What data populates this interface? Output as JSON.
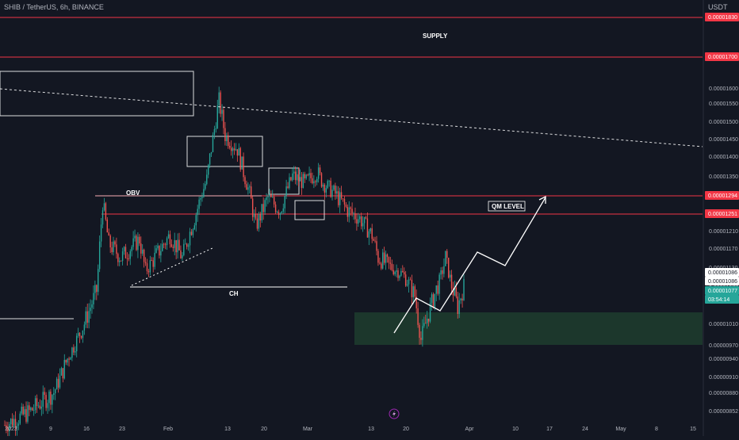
{
  "header": {
    "symbol_line": "SHIB / TetherUS, 6h, BINANCE",
    "currency": "USDT"
  },
  "colors": {
    "background": "#131722",
    "up": "#26a69a",
    "down": "#ef5350",
    "resistance_line": "#f23645",
    "demand_zone": "#1f3d2e",
    "annotation": "#ffffff",
    "grid_text": "#b2b5be"
  },
  "chart_data": {
    "type": "candlestick",
    "y_scale": "linear",
    "y_ticks": [
      "0.00001830",
      "0.00001700",
      "0.00001600",
      "0.00001550",
      "0.00001500",
      "0.00001450",
      "0.00001400",
      "0.00001350",
      "0.00001294",
      "0.00001251",
      "0.00001210",
      "0.00001170",
      "0.00001130",
      "0.00001086",
      "0.00001077",
      "0.00001050",
      "0.00001010",
      "0.00000970",
      "0.00000940",
      "0.00000910",
      "0.00000880",
      "0.00000852"
    ],
    "x_ticks": [
      "2023",
      "9",
      "16",
      "23",
      "Feb",
      "13",
      "20",
      "Mar",
      "13",
      "20",
      "Apr",
      "10",
      "17",
      "24",
      "May",
      "8",
      "15"
    ],
    "price_labels": [
      {
        "value": "0.00001830",
        "style": "red"
      },
      {
        "value": "0.00001700",
        "style": "red"
      },
      {
        "value": "0.00001294",
        "style": "red"
      },
      {
        "value": "0.00001251",
        "style": "red"
      },
      {
        "value": "0.00001086",
        "style": "white"
      },
      {
        "value": "0.00001086",
        "style": "white"
      },
      {
        "value": "0.00001077",
        "style": "green"
      },
      {
        "value": "03:54:14",
        "style": "green"
      }
    ],
    "horizontal_levels": [
      1.83e-05,
      1.7e-05,
      1.294e-05,
      1.251e-05
    ],
    "demand_zone": {
      "low": 9.7e-06,
      "high": 1.03e-05
    },
    "annotations": [
      "SUPPLY",
      "OBV",
      "CH",
      "QM LEVEL"
    ],
    "current_price": 1.077e-05,
    "countdown": "03:54:14",
    "price_path": [
      {
        "date": "Jan 1",
        "price": 8.3e-06
      },
      {
        "date": "Jan 5",
        "price": 8.5e-06
      },
      {
        "date": "Jan 9",
        "price": 8.8e-06
      },
      {
        "date": "Jan 12",
        "price": 9.6e-06
      },
      {
        "date": "Jan 14",
        "price": 1.01e-05
      },
      {
        "date": "Jan 16",
        "price": 1.07e-05
      },
      {
        "date": "Jan 17",
        "price": 1.28e-05
      },
      {
        "date": "Jan 18",
        "price": 1.18e-05
      },
      {
        "date": "Jan 20",
        "price": 1.15e-05
      },
      {
        "date": "Jan 23",
        "price": 1.19e-05
      },
      {
        "date": "Jan 24",
        "price": 1.12e-05
      },
      {
        "date": "Jan 26",
        "price": 1.16e-05
      },
      {
        "date": "Jan 28",
        "price": 1.2e-05
      },
      {
        "date": "Jan 30",
        "price": 1.15e-05
      },
      {
        "date": "Feb 1",
        "price": 1.24e-05
      },
      {
        "date": "Feb 3",
        "price": 1.34e-05
      },
      {
        "date": "Feb 5",
        "price": 1.56e-05
      },
      {
        "date": "Feb 6",
        "price": 1.46e-05
      },
      {
        "date": "Feb 8",
        "price": 1.42e-05
      },
      {
        "date": "Feb 10",
        "price": 1.3e-05
      },
      {
        "date": "Feb 11",
        "price": 1.22e-05
      },
      {
        "date": "Feb 13",
        "price": 1.29e-05
      },
      {
        "date": "Feb 15",
        "price": 1.26e-05
      },
      {
        "date": "Feb 17",
        "price": 1.35e-05
      },
      {
        "date": "Feb 19",
        "price": 1.33e-05
      },
      {
        "date": "Feb 21",
        "price": 1.36e-05
      },
      {
        "date": "Feb 22",
        "price": 1.33e-05
      },
      {
        "date": "Feb 24",
        "price": 1.3e-05
      },
      {
        "date": "Feb 26",
        "price": 1.26e-05
      },
      {
        "date": "Feb 28",
        "price": 1.24e-05
      },
      {
        "date": "Mar 2",
        "price": 1.2e-05
      },
      {
        "date": "Mar 3",
        "price": 1.15e-05
      },
      {
        "date": "Mar 5",
        "price": 1.13e-05
      },
      {
        "date": "Mar 7",
        "price": 1.11e-05
      },
      {
        "date": "Mar 9",
        "price": 1.06e-05
      },
      {
        "date": "Mar 10",
        "price": 9.8e-06
      },
      {
        "date": "Mar 11",
        "price": 1.02e-05
      },
      {
        "date": "Mar 13",
        "price": 1.09e-05
      },
      {
        "date": "Mar 14",
        "price": 1.15e-05
      },
      {
        "date": "Mar 15",
        "price": 1.08e-05
      },
      {
        "date": "Mar 16",
        "price": 1.04e-05
      },
      {
        "date": "Mar 17",
        "price": 1.08e-05
      }
    ],
    "projection_path": [
      {
        "date": "Mar 17",
        "price": 1e-05
      },
      {
        "date": "Mar 23",
        "price": 1.06e-05
      },
      {
        "date": "Mar 27",
        "price": 1.05e-05
      },
      {
        "date": "Apr 4",
        "price": 1.18e-05
      },
      {
        "date": "Apr 10",
        "price": 1.15e-05
      },
      {
        "date": "Apr 17",
        "price": 1.294e-05
      }
    ]
  }
}
